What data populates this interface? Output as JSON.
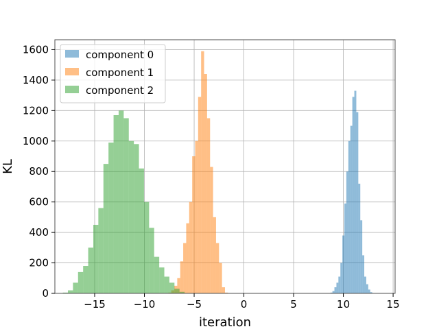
{
  "chart_data": {
    "type": "histogram",
    "xlabel": "iteration",
    "ylabel": "KL",
    "xlim": [
      -19,
      15.2
    ],
    "ylim": [
      0,
      1665
    ],
    "xticks": [
      -15,
      -10,
      -5,
      0,
      5,
      10,
      15
    ],
    "xtick_labels": [
      "−15",
      "−10",
      "−5",
      "0",
      "5",
      "10",
      "15"
    ],
    "yticks": [
      0,
      200,
      400,
      600,
      800,
      1000,
      1200,
      1400,
      1600
    ],
    "ytick_labels": [
      "0",
      "200",
      "400",
      "600",
      "800",
      "1000",
      "1200",
      "1400",
      "1600"
    ],
    "grid": true,
    "legend_position": "upper-left",
    "series": [
      {
        "name": "component 0",
        "color": "#1f77b4",
        "alpha": 0.5,
        "bin_start": 8.7,
        "bin_width": 0.2,
        "counts": [
          5,
          15,
          40,
          70,
          110,
          200,
          380,
          590,
          800,
          1000,
          1100,
          1290,
          1330,
          1190,
          720,
          480,
          250,
          110,
          60,
          25,
          8
        ]
      },
      {
        "name": "component 1",
        "color": "#ff7f0e",
        "alpha": 0.5,
        "bin_start": -7.6,
        "bin_width": 0.3,
        "counts": [
          5,
          20,
          50,
          100,
          210,
          330,
          460,
          600,
          900,
          1000,
          1290,
          1590,
          1440,
          1150,
          830,
          500,
          330,
          200,
          40,
          5
        ]
      },
      {
        "name": "component 2",
        "color": "#2ca02c",
        "alpha": 0.5,
        "bin_start": -18.2,
        "bin_width": 0.51,
        "counts": [
          5,
          20,
          70,
          140,
          180,
          300,
          450,
          560,
          850,
          990,
          1170,
          1200,
          1150,
          1000,
          980,
          820,
          600,
          430,
          240,
          170,
          110,
          70,
          30,
          10
        ]
      }
    ]
  }
}
